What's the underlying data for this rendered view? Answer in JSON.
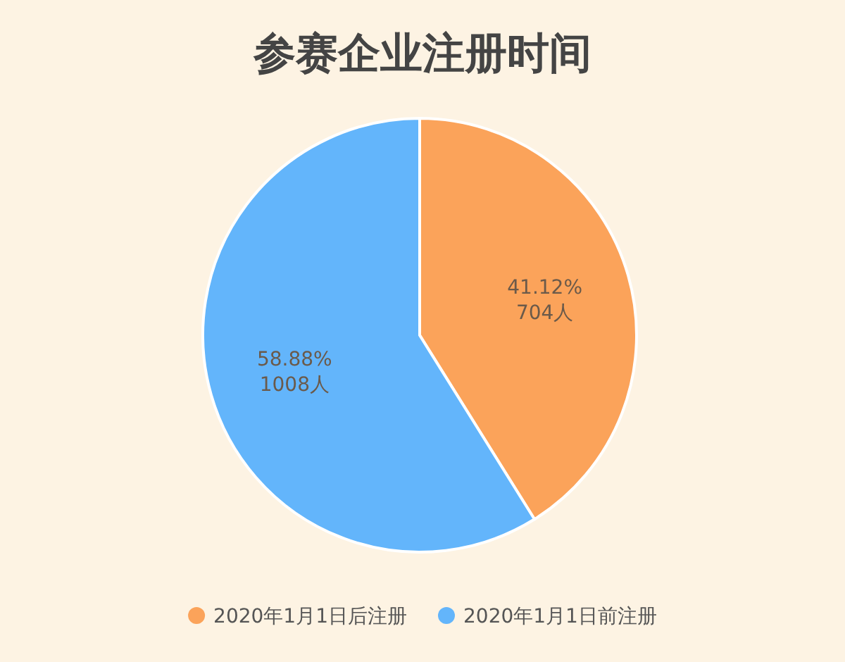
{
  "chart_data": {
    "type": "pie",
    "title": "参赛企业注册时间",
    "categories": [
      "2020年1月1日后注册",
      "2020年1月1日前注册"
    ],
    "values": [
      704,
      1008
    ],
    "colors": [
      "#fba35a",
      "#63b5fb"
    ],
    "value_labels": [
      "41.12%\n704人",
      "58.88%\n1008人"
    ],
    "legend": "bottom"
  }
}
